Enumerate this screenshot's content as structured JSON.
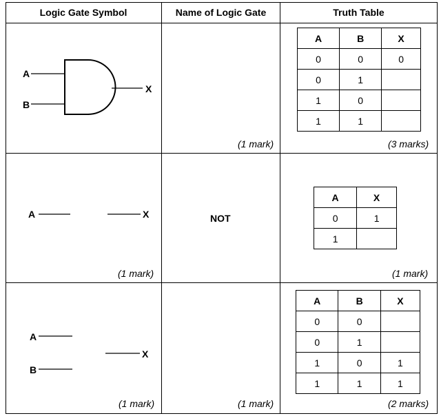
{
  "headers": [
    "Logic Gate Symbol",
    "Name of Logic Gate",
    "Truth Table"
  ],
  "rows": [
    {
      "symbol": {
        "inputs": [
          "A",
          "B"
        ],
        "output": "X",
        "gate": "AND"
      },
      "name": "",
      "name_mark": "(1 mark)",
      "symbol_mark": "",
      "table": {
        "columns": [
          "A",
          "B",
          "X"
        ],
        "rows": [
          [
            "0",
            "0",
            "0"
          ],
          [
            "0",
            "1",
            ""
          ],
          [
            "1",
            "0",
            ""
          ],
          [
            "1",
            "1",
            ""
          ]
        ]
      },
      "table_mark": "(3 marks)"
    },
    {
      "symbol": {
        "inputs": [
          "A"
        ],
        "output": "X",
        "gate": ""
      },
      "name": "NOT",
      "name_mark": "",
      "symbol_mark": "(1 mark)",
      "table": {
        "columns": [
          "A",
          "X"
        ],
        "rows": [
          [
            "0",
            "1"
          ],
          [
            "1",
            ""
          ]
        ]
      },
      "table_mark": "(1 mark)"
    },
    {
      "symbol": {
        "inputs": [
          "A",
          "B"
        ],
        "output": "X",
        "gate": ""
      },
      "name": "",
      "name_mark": "(1 mark)",
      "symbol_mark": "(1 mark)",
      "table": {
        "columns": [
          "A",
          "B",
          "X"
        ],
        "rows": [
          [
            "0",
            "0",
            ""
          ],
          [
            "0",
            "1",
            ""
          ],
          [
            "1",
            "0",
            "1"
          ],
          [
            "1",
            "1",
            "1"
          ]
        ]
      },
      "table_mark": "(2 marks)"
    }
  ]
}
